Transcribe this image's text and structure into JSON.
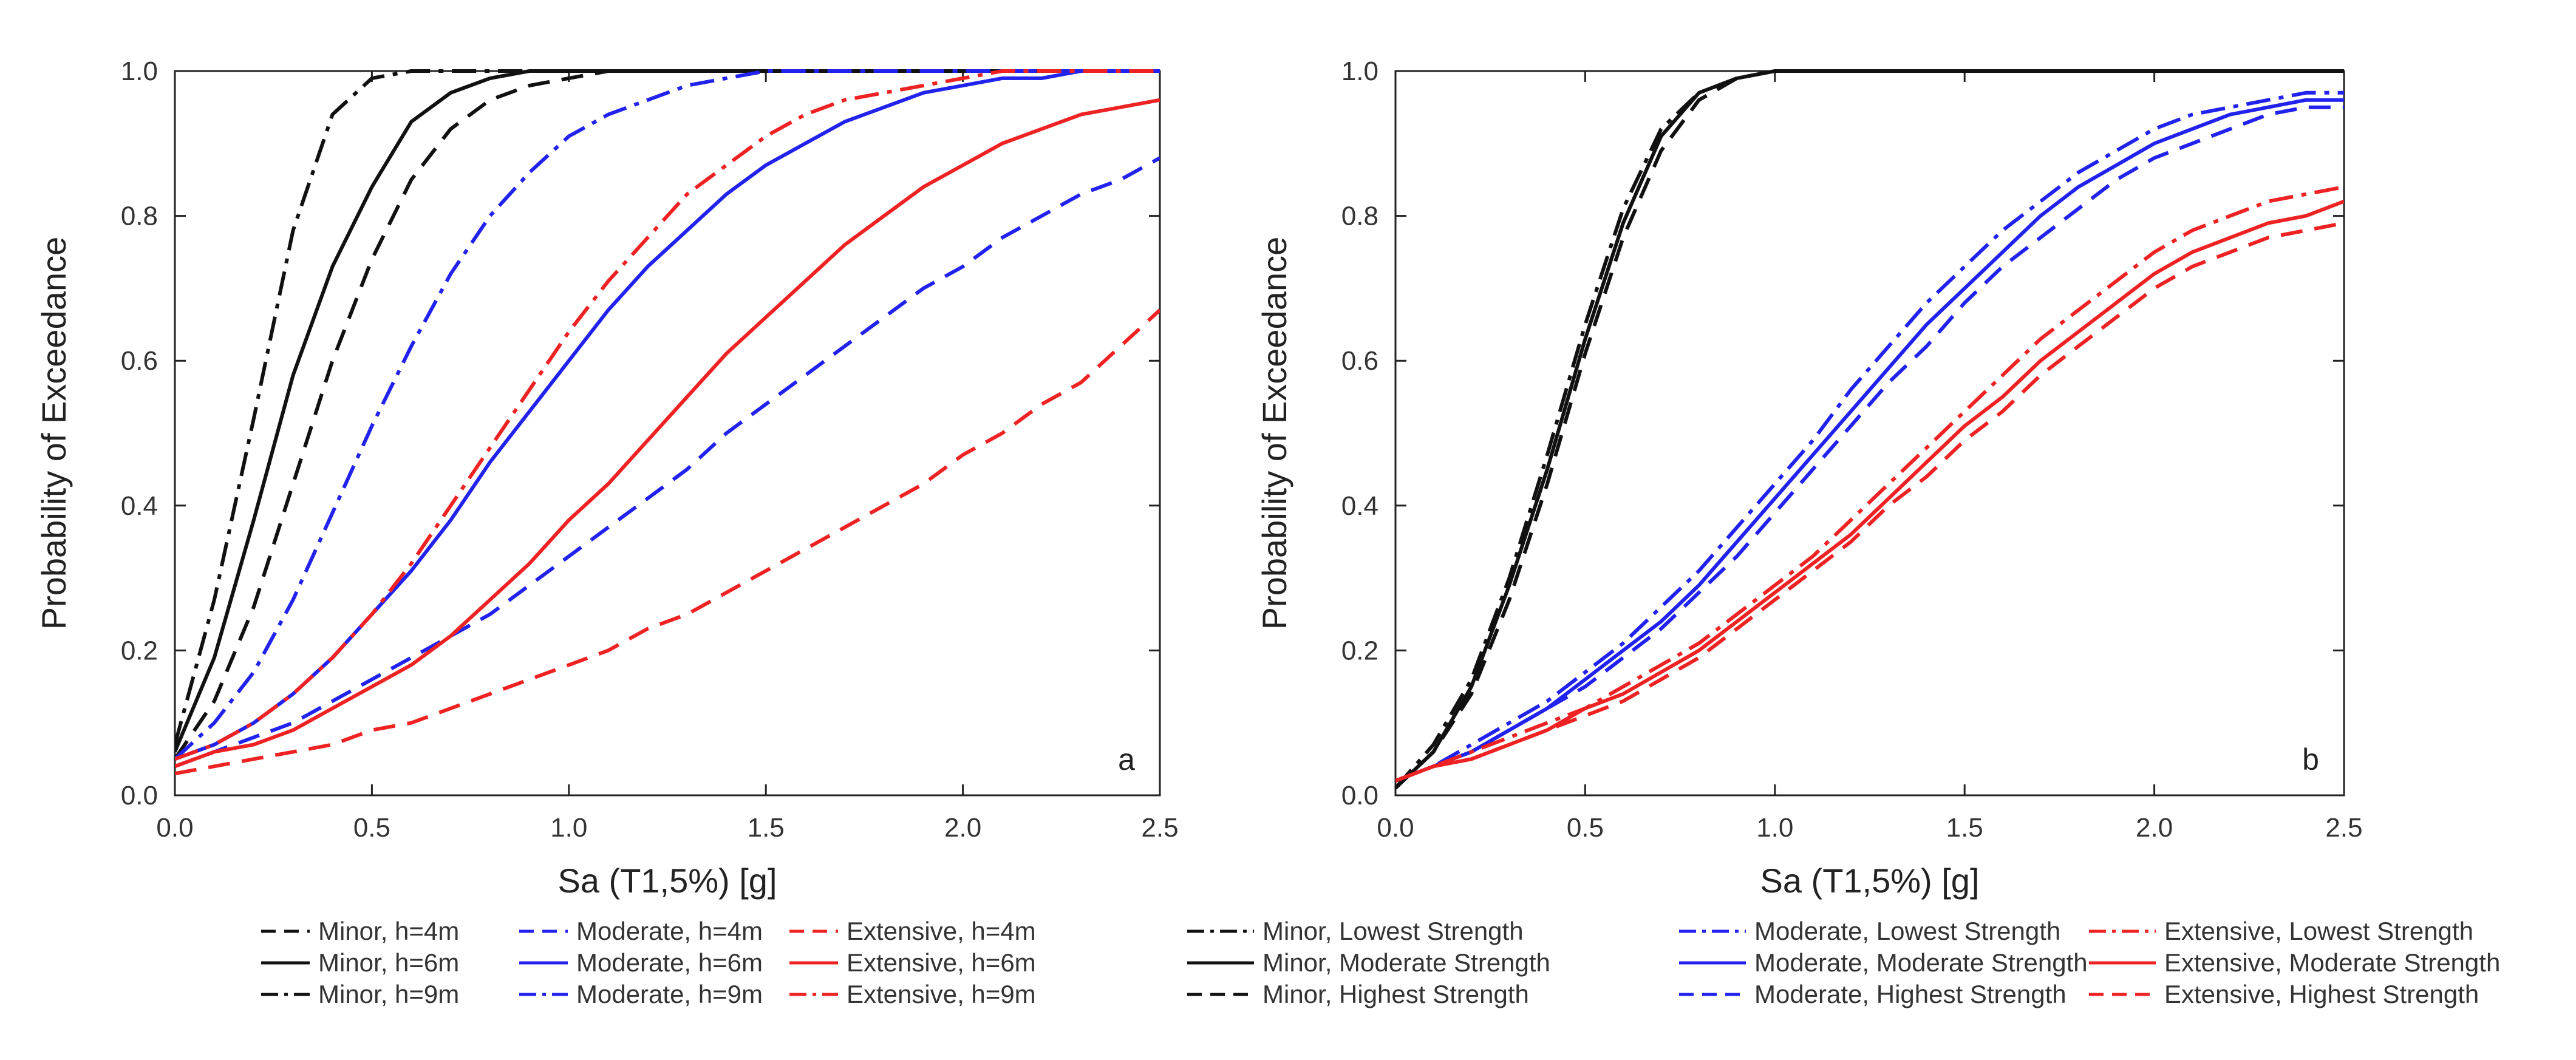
{
  "chart_data": [
    {
      "type": "line",
      "panel": "a",
      "xlabel": "Sa (T1,5%) [g]",
      "ylabel": "Probability of Exceedance",
      "xlim": [
        0.0,
        2.5
      ],
      "ylim": [
        0.0,
        1.0
      ],
      "xticks": [
        "0.0",
        "0.5",
        "1.0",
        "1.5",
        "2.0",
        "2.5"
      ],
      "yticks": [
        "0.0",
        "0.2",
        "0.4",
        "0.6",
        "0.8",
        "1.0"
      ],
      "legend_position": "bottom",
      "x": [
        0.0,
        0.1,
        0.2,
        0.3,
        0.4,
        0.5,
        0.6,
        0.7,
        0.8,
        0.9,
        1.0,
        1.1,
        1.2,
        1.3,
        1.4,
        1.5,
        1.6,
        1.7,
        1.8,
        1.9,
        2.0,
        2.1,
        2.2,
        2.3,
        2.4,
        2.5
      ],
      "series": [
        {
          "name": "Minor, h=4m",
          "color": "#111111",
          "dash": "dash",
          "values": [
            0.05,
            0.13,
            0.26,
            0.43,
            0.6,
            0.74,
            0.85,
            0.92,
            0.96,
            0.98,
            0.99,
            1.0,
            1.0,
            1.0,
            1.0,
            1.0,
            1.0,
            1.0,
            1.0,
            1.0,
            1.0,
            1.0,
            1.0,
            1.0,
            1.0,
            1.0
          ]
        },
        {
          "name": "Moderate, h=4m",
          "color": "#2222ee",
          "dash": "dash",
          "values": [
            0.04,
            0.06,
            0.08,
            0.1,
            0.13,
            0.16,
            0.19,
            0.22,
            0.25,
            0.29,
            0.33,
            0.37,
            0.41,
            0.45,
            0.5,
            0.54,
            0.58,
            0.62,
            0.66,
            0.7,
            0.73,
            0.77,
            0.8,
            0.83,
            0.85,
            0.88
          ]
        },
        {
          "name": "Extensive, h=4m",
          "color": "#ee2222",
          "dash": "dash",
          "values": [
            0.03,
            0.04,
            0.05,
            0.06,
            0.07,
            0.09,
            0.1,
            0.12,
            0.14,
            0.16,
            0.18,
            0.2,
            0.23,
            0.25,
            0.28,
            0.31,
            0.34,
            0.37,
            0.4,
            0.43,
            0.47,
            0.5,
            0.54,
            0.57,
            0.62,
            0.67
          ]
        },
        {
          "name": "Minor, h=6m",
          "color": "#111111",
          "dash": "solid",
          "values": [
            0.06,
            0.19,
            0.38,
            0.58,
            0.73,
            0.84,
            0.93,
            0.97,
            0.99,
            1.0,
            1.0,
            1.0,
            1.0,
            1.0,
            1.0,
            1.0,
            1.0,
            1.0,
            1.0,
            1.0,
            1.0,
            1.0,
            1.0,
            1.0,
            1.0,
            1.0
          ]
        },
        {
          "name": "Moderate, h=6m",
          "color": "#2222ee",
          "dash": "solid",
          "values": [
            0.05,
            0.07,
            0.1,
            0.14,
            0.19,
            0.25,
            0.31,
            0.38,
            0.46,
            0.53,
            0.6,
            0.67,
            0.73,
            0.78,
            0.83,
            0.87,
            0.9,
            0.93,
            0.95,
            0.97,
            0.98,
            0.99,
            0.99,
            1.0,
            1.0,
            1.0
          ]
        },
        {
          "name": "Extensive, h=6m",
          "color": "#ee2222",
          "dash": "solid",
          "values": [
            0.04,
            0.06,
            0.07,
            0.09,
            0.12,
            0.15,
            0.18,
            0.22,
            0.27,
            0.32,
            0.38,
            0.43,
            0.49,
            0.55,
            0.61,
            0.66,
            0.71,
            0.76,
            0.8,
            0.84,
            0.87,
            0.9,
            0.92,
            0.94,
            0.95,
            0.96
          ]
        },
        {
          "name": "Minor, h=9m",
          "color": "#111111",
          "dash": "dashdot",
          "values": [
            0.07,
            0.27,
            0.52,
            0.78,
            0.94,
            0.99,
            1.0,
            1.0,
            1.0,
            1.0,
            1.0,
            1.0,
            1.0,
            1.0,
            1.0,
            1.0,
            1.0,
            1.0,
            1.0,
            1.0,
            1.0,
            1.0,
            1.0,
            1.0,
            1.0,
            1.0
          ]
        },
        {
          "name": "Moderate, h=9m",
          "color": "#2222ee",
          "dash": "dashdot",
          "values": [
            0.05,
            0.1,
            0.17,
            0.27,
            0.39,
            0.51,
            0.62,
            0.72,
            0.8,
            0.86,
            0.91,
            0.94,
            0.96,
            0.98,
            0.99,
            1.0,
            1.0,
            1.0,
            1.0,
            1.0,
            1.0,
            1.0,
            1.0,
            1.0,
            1.0,
            1.0
          ]
        },
        {
          "name": "Extensive, h=9m",
          "color": "#ee2222",
          "dash": "dashdot",
          "values": [
            0.05,
            0.07,
            0.1,
            0.14,
            0.19,
            0.25,
            0.32,
            0.4,
            0.48,
            0.56,
            0.64,
            0.71,
            0.77,
            0.83,
            0.87,
            0.91,
            0.94,
            0.96,
            0.97,
            0.98,
            0.99,
            1.0,
            1.0,
            1.0,
            1.0,
            1.0
          ]
        }
      ]
    },
    {
      "type": "line",
      "panel": "b",
      "xlabel": "Sa (T1,5%) [g]",
      "ylabel": "Probability of Exceedance",
      "xlim": [
        0.0,
        2.5
      ],
      "ylim": [
        0.0,
        1.0
      ],
      "xticks": [
        "0.0",
        "0.5",
        "1.0",
        "1.5",
        "2.0",
        "2.5"
      ],
      "yticks": [
        "0.0",
        "0.2",
        "0.4",
        "0.6",
        "0.8",
        "1.0"
      ],
      "legend_position": "bottom",
      "x": [
        0.0,
        0.1,
        0.2,
        0.3,
        0.4,
        0.5,
        0.6,
        0.7,
        0.8,
        0.9,
        1.0,
        1.1,
        1.2,
        1.3,
        1.4,
        1.5,
        1.6,
        1.7,
        1.8,
        1.9,
        2.0,
        2.1,
        2.2,
        2.3,
        2.4,
        2.5
      ],
      "series": [
        {
          "name": "Minor, Lowest Strength",
          "color": "#111111",
          "dash": "dashdot",
          "values": [
            0.01,
            0.07,
            0.16,
            0.3,
            0.47,
            0.65,
            0.81,
            0.92,
            0.97,
            0.99,
            1.0,
            1.0,
            1.0,
            1.0,
            1.0,
            1.0,
            1.0,
            1.0,
            1.0,
            1.0,
            1.0,
            1.0,
            1.0,
            1.0,
            1.0,
            1.0
          ]
        },
        {
          "name": "Minor, Moderate Strength",
          "color": "#111111",
          "dash": "solid",
          "values": [
            0.01,
            0.06,
            0.15,
            0.29,
            0.45,
            0.63,
            0.79,
            0.91,
            0.97,
            0.99,
            1.0,
            1.0,
            1.0,
            1.0,
            1.0,
            1.0,
            1.0,
            1.0,
            1.0,
            1.0,
            1.0,
            1.0,
            1.0,
            1.0,
            1.0,
            1.0
          ]
        },
        {
          "name": "Minor, Highest Strength",
          "color": "#111111",
          "dash": "dash",
          "values": [
            0.01,
            0.06,
            0.14,
            0.27,
            0.43,
            0.61,
            0.77,
            0.89,
            0.96,
            0.99,
            1.0,
            1.0,
            1.0,
            1.0,
            1.0,
            1.0,
            1.0,
            1.0,
            1.0,
            1.0,
            1.0,
            1.0,
            1.0,
            1.0,
            1.0,
            1.0
          ]
        },
        {
          "name": "Moderate, Lowest Strength",
          "color": "#2222ee",
          "dash": "dashdot",
          "values": [
            0.02,
            0.04,
            0.07,
            0.1,
            0.13,
            0.17,
            0.21,
            0.26,
            0.31,
            0.37,
            0.43,
            0.49,
            0.56,
            0.62,
            0.68,
            0.73,
            0.78,
            0.82,
            0.86,
            0.89,
            0.92,
            0.94,
            0.95,
            0.96,
            0.97,
            0.97
          ]
        },
        {
          "name": "Moderate, Moderate Strength",
          "color": "#2222ee",
          "dash": "solid",
          "values": [
            0.02,
            0.04,
            0.06,
            0.09,
            0.12,
            0.16,
            0.2,
            0.24,
            0.29,
            0.35,
            0.41,
            0.47,
            0.53,
            0.59,
            0.65,
            0.7,
            0.75,
            0.8,
            0.84,
            0.87,
            0.9,
            0.92,
            0.94,
            0.95,
            0.96,
            0.96
          ]
        },
        {
          "name": "Moderate, Highest Strength",
          "color": "#2222ee",
          "dash": "dash",
          "values": [
            0.02,
            0.04,
            0.06,
            0.09,
            0.12,
            0.15,
            0.19,
            0.23,
            0.28,
            0.33,
            0.39,
            0.45,
            0.51,
            0.57,
            0.62,
            0.68,
            0.73,
            0.77,
            0.81,
            0.85,
            0.88,
            0.9,
            0.92,
            0.94,
            0.95,
            0.95
          ]
        },
        {
          "name": "Extensive, Lowest Strength",
          "color": "#ee2222",
          "dash": "dashdot",
          "values": [
            0.02,
            0.04,
            0.06,
            0.08,
            0.1,
            0.12,
            0.15,
            0.18,
            0.21,
            0.25,
            0.29,
            0.33,
            0.38,
            0.43,
            0.48,
            0.53,
            0.58,
            0.63,
            0.67,
            0.71,
            0.75,
            0.78,
            0.8,
            0.82,
            0.83,
            0.84
          ]
        },
        {
          "name": "Extensive, Moderate Strength",
          "color": "#ee2222",
          "dash": "solid",
          "values": [
            0.02,
            0.04,
            0.05,
            0.07,
            0.09,
            0.12,
            0.14,
            0.17,
            0.2,
            0.24,
            0.28,
            0.32,
            0.36,
            0.41,
            0.46,
            0.51,
            0.55,
            0.6,
            0.64,
            0.68,
            0.72,
            0.75,
            0.77,
            0.79,
            0.8,
            0.82
          ]
        },
        {
          "name": "Extensive, Highest Strength",
          "color": "#ee2222",
          "dash": "dash",
          "values": [
            0.02,
            0.04,
            0.05,
            0.07,
            0.09,
            0.11,
            0.13,
            0.16,
            0.19,
            0.23,
            0.27,
            0.31,
            0.35,
            0.4,
            0.44,
            0.49,
            0.53,
            0.58,
            0.62,
            0.66,
            0.7,
            0.73,
            0.75,
            0.77,
            0.78,
            0.79
          ]
        }
      ]
    }
  ]
}
